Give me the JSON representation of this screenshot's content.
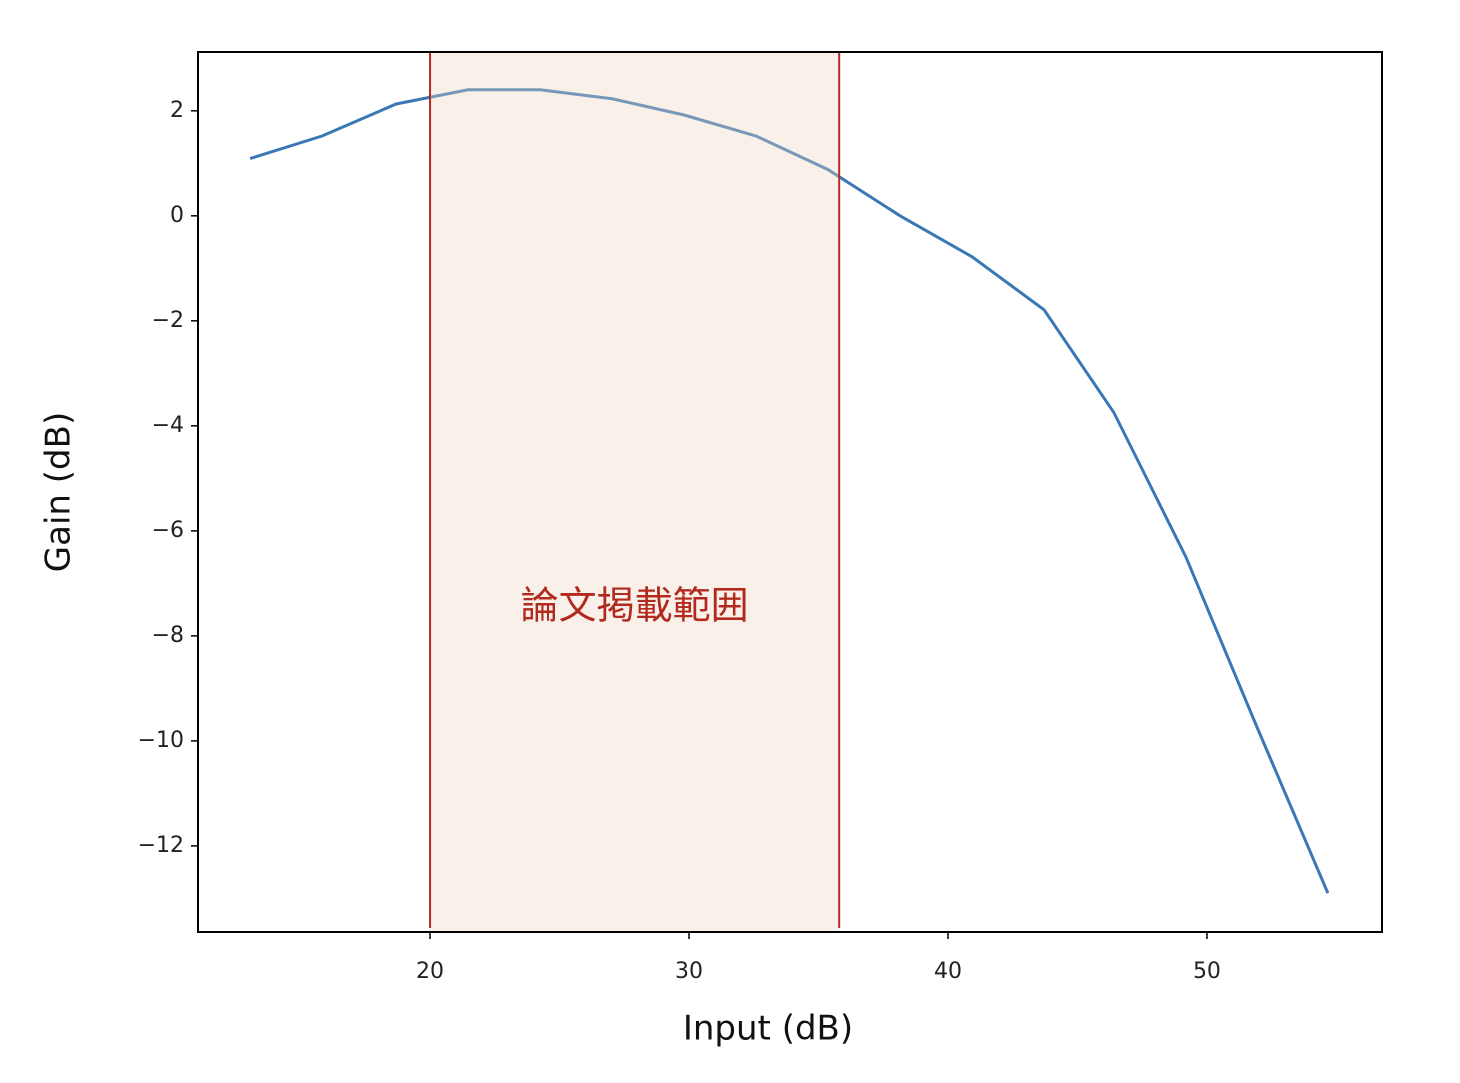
{
  "chart_data": {
    "type": "line",
    "x_label": "Input (dB)",
    "y_label": "Gain (dB)",
    "x": [
      13.05,
      15.83,
      18.69,
      21.47,
      24.25,
      27.03,
      29.81,
      32.59,
      35.37,
      38.15,
      40.93,
      43.71,
      46.41,
      49.19,
      51.9,
      54.67
    ],
    "series": [
      {
        "color": "#3a78b5",
        "values": [
          1.09,
          1.52,
          2.13,
          2.4,
          2.4,
          2.23,
          1.92,
          1.52,
          0.88,
          0.0,
          -0.78,
          -1.79,
          -3.75,
          -6.5,
          -9.7,
          -12.9
        ]
      }
    ],
    "span": [
      20,
      35.8
    ],
    "span_color": "#b22a1e",
    "span_label": "論文掲載範囲",
    "xlim": [
      11.04,
      56.76
    ],
    "ylim": [
      -13.64,
      3.12
    ],
    "xticks": [
      20,
      30,
      40,
      50
    ],
    "yticks": [
      2,
      0,
      {
        "value": -2,
        "label": "−2"
      },
      {
        "value": -4,
        "label": "−4"
      },
      {
        "value": -6,
        "label": "−6"
      },
      {
        "value": -8,
        "label": "−8"
      },
      {
        "value": -10,
        "label": "−10"
      },
      {
        "value": -12,
        "label": "−12"
      }
    ],
    "grid": false
  }
}
